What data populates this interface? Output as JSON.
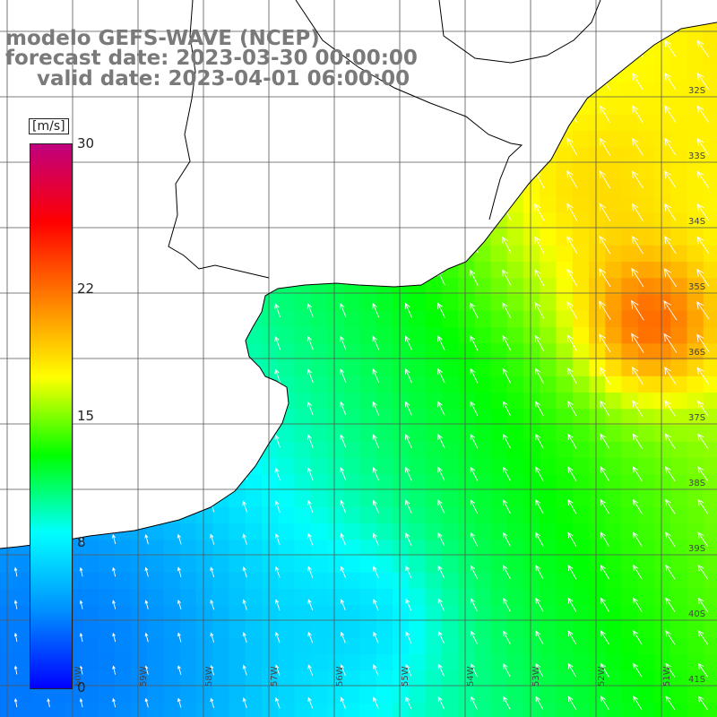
{
  "title": {
    "line1": "modelo GEFS-WAVE (NCEP)",
    "line2": "forecast date: 2023-03-30 00:00:00",
    "line3": "valid date: 2023-04-01 06:00:00"
  },
  "colorbar": {
    "unit": "[m/s]",
    "min": 0,
    "max": 30,
    "tick_labels": [
      "30",
      "22",
      "15",
      "8",
      "0"
    ],
    "tick_values": [
      30,
      22,
      15,
      8,
      0
    ],
    "colors": [
      "#0000ff",
      "#0090ff",
      "#00ffff",
      "#00ff00",
      "#ffff00",
      "#ff8000",
      "#ff0000",
      "#c0007f"
    ]
  },
  "map": {
    "lat_labels": [
      "32S",
      "33S",
      "34S",
      "35S",
      "36S",
      "37S",
      "38S",
      "39S",
      "40S",
      "41S"
    ],
    "lon_labels": [
      "60W",
      "59W",
      "58W",
      "57W",
      "56W",
      "55W",
      "54W",
      "53W",
      "52W",
      "51W",
      "50W"
    ],
    "land_color": "#ffffff",
    "grid_color": "#555555",
    "arrow_color": "#ffffff",
    "wind_field": "wind speed with direction arrows; weakest (blue) in southwest off the coast, strongest (orange/red, ~21 m/s) near 35.5S 50.5W"
  }
}
